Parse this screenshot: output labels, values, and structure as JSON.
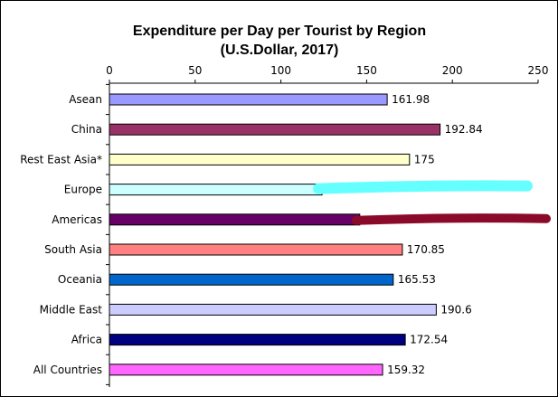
{
  "chart_data": {
    "type": "bar",
    "orientation": "horizontal",
    "title": "Expenditure per Day per Tourist by Region",
    "subtitle": "(U.S.Dollar, 2017)",
    "xlim": [
      0,
      250
    ],
    "xticks": [
      0,
      50,
      100,
      150,
      200,
      250
    ],
    "axis_position": "top",
    "categories": [
      "Asean",
      "China",
      "Rest East Asia*",
      "Europe",
      "Americas",
      "South Asia",
      "Oceania",
      "Middle East",
      "Africa",
      "All Countries"
    ],
    "values": [
      161.98,
      192.84,
      175,
      124,
      146,
      170.85,
      165.53,
      190.6,
      172.54,
      159.32
    ],
    "data_labels": [
      "161.98",
      "192.84",
      "175",
      "",
      "",
      "170.85",
      "165.53",
      "190.6",
      "172.54",
      "159.32"
    ],
    "colors": [
      "#9999ff",
      "#993366",
      "#ffffcc",
      "#ccffff",
      "#660066",
      "#ff8080",
      "#0066cc",
      "#ccccff",
      "#000080",
      "#ff66ff"
    ],
    "annotations": [
      {
        "type": "scribble",
        "color": "#66ffff",
        "target": "Europe"
      },
      {
        "type": "scribble",
        "color": "#8b0a2a",
        "target": "Americas"
      }
    ]
  }
}
